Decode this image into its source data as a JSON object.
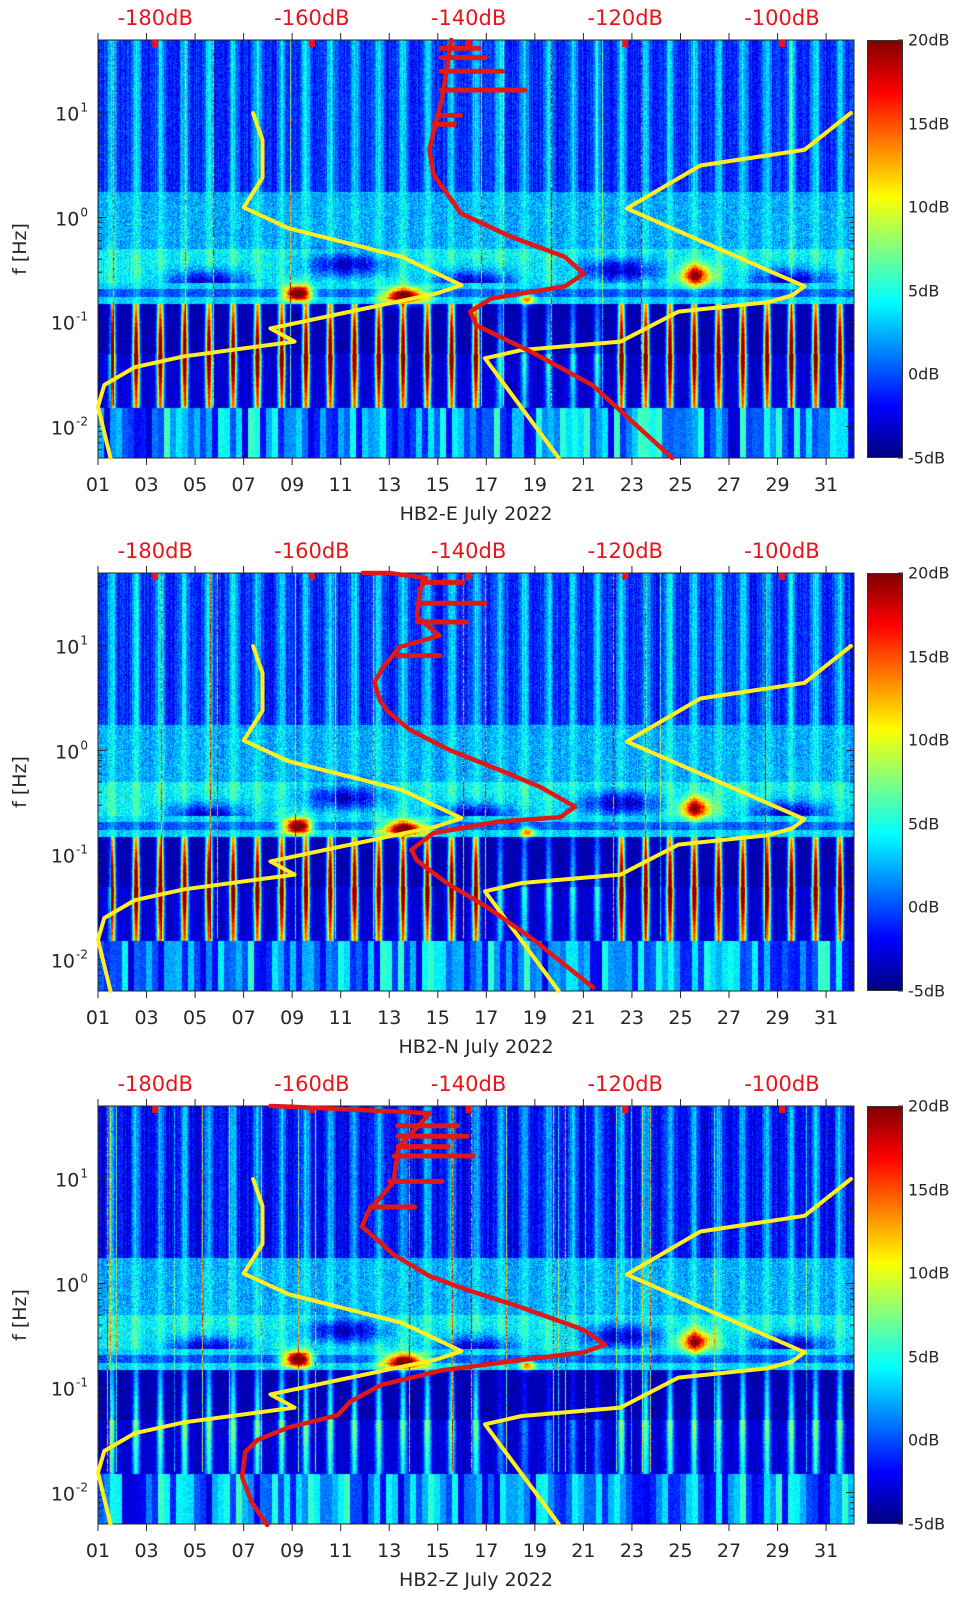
{
  "shared_axes": {
    "ylabel": "f [Hz]",
    "xlim_days": [
      1,
      32.15
    ],
    "ylim_hz": [
      0.005,
      50
    ],
    "yscale": "log",
    "x_tick_days": [
      1,
      3,
      5,
      7,
      9,
      11,
      13,
      15,
      17,
      19,
      21,
      23,
      25,
      27,
      29,
      31
    ],
    "x_tick_labels": [
      "01",
      "03",
      "05",
      "07",
      "09",
      "11",
      "13",
      "15",
      "17",
      "19",
      "21",
      "23",
      "25",
      "27",
      "29",
      "31"
    ],
    "y_ticks": [
      {
        "value": 10,
        "base": "10",
        "exp": "1"
      },
      {
        "value": 1,
        "base": "10",
        "exp": "0"
      },
      {
        "value": 0.1,
        "base": "10",
        "exp": "-1"
      },
      {
        "value": 0.01,
        "base": "10",
        "exp": "-2"
      }
    ],
    "top_axis": {
      "range_db": [
        -187.3,
        -90.8
      ],
      "values": [
        -180,
        -160,
        -140,
        -120,
        -100
      ],
      "labels": [
        "-180dB",
        "-160dB",
        "-140dB",
        "-120dB",
        "-100dB"
      ],
      "color": "#e8141a"
    },
    "colorbar": {
      "range_db": [
        -5,
        20
      ],
      "values": [
        20,
        15,
        10,
        5,
        0,
        -5
      ],
      "labels": [
        "20dB",
        "15dB",
        "10dB",
        "5dB",
        "0dB",
        "-5dB"
      ],
      "colormap": "jet"
    },
    "noise_models": {
      "low": {
        "color": "#ffee22",
        "points_db_hz": [
          [
            -167.5,
            10
          ],
          [
            -166.3,
            5.5
          ],
          [
            -166.3,
            2.4
          ],
          [
            -168.7,
            1.25
          ],
          [
            -163,
            0.79
          ],
          [
            -148.5,
            0.42
          ],
          [
            -140.9,
            0.225
          ],
          [
            -144.2,
            0.187
          ],
          [
            -165.3,
            0.087
          ],
          [
            -162.2,
            0.065
          ],
          [
            -176.3,
            0.047
          ],
          [
            -182.6,
            0.037
          ],
          [
            -186.5,
            0.025
          ],
          [
            -187.3,
            0.0155
          ],
          [
            -185.7,
            0.005
          ]
        ]
      },
      "high": {
        "color": "#ffee22",
        "points_db_hz": [
          [
            -91.2,
            10
          ],
          [
            -97.1,
            4.45
          ],
          [
            -110.4,
            3.15
          ],
          [
            -119.8,
            1.22
          ],
          [
            -97.1,
            0.22
          ],
          [
            -98.7,
            0.18
          ],
          [
            -101.8,
            0.155
          ],
          [
            -113.2,
            0.126
          ],
          [
            -120.6,
            0.065
          ],
          [
            -133.2,
            0.054
          ],
          [
            -137.9,
            0.045
          ],
          [
            -128.5,
            0.005
          ]
        ]
      }
    }
  },
  "chart_data": [
    {
      "type": "heatmap",
      "xlabel": "HB2-E July 2022",
      "psd_color": "#e01818",
      "psd_db_hz": [
        [
          -142.2,
          50
        ],
        [
          -143.4,
          13.5
        ],
        [
          -145,
          4.5
        ],
        [
          -144.5,
          2.6
        ],
        [
          -141,
          1.1
        ],
        [
          -134.7,
          0.66
        ],
        [
          -127.7,
          0.42
        ],
        [
          -125.3,
          0.29
        ],
        [
          -127.7,
          0.22
        ],
        [
          -137.1,
          0.168
        ],
        [
          -139.8,
          0.126
        ],
        [
          -139,
          0.093
        ],
        [
          -131.6,
          0.05
        ],
        [
          -124.2,
          0.025
        ],
        [
          -114,
          0.005
        ]
      ],
      "psd_spikes_db_db_hz": [
        [
          -143.5,
          -138.7,
          41.7
        ],
        [
          -143.5,
          -137.9,
          33.9
        ],
        [
          -143.5,
          -135.7,
          25.1
        ],
        [
          -143.5,
          -132.8,
          16.6
        ],
        [
          -144,
          -141,
          9.5
        ],
        [
          -144.5,
          -141.8,
          7.8
        ]
      ]
    },
    {
      "type": "heatmap",
      "xlabel": "HB2-N July 2022",
      "psd_color": "#e01818",
      "psd_db_hz": [
        [
          -153.5,
          50
        ],
        [
          -150.1,
          50
        ],
        [
          -145.4,
          44.7
        ],
        [
          -146.2,
          34.7
        ],
        [
          -146.6,
          19.1
        ],
        [
          -143.7,
          12.6
        ],
        [
          -148.8,
          9.8
        ],
        [
          -150.9,
          6.3
        ],
        [
          -152,
          4.5
        ],
        [
          -151.3,
          3.0
        ],
        [
          -150.1,
          2.3
        ],
        [
          -147.5,
          1.58
        ],
        [
          -142.4,
          1.01
        ],
        [
          -136,
          0.65
        ],
        [
          -130.9,
          0.45
        ],
        [
          -126.4,
          0.29
        ],
        [
          -128.3,
          0.23
        ],
        [
          -136,
          0.21
        ],
        [
          -144.5,
          0.162
        ],
        [
          -147.3,
          0.112
        ],
        [
          -146.6,
          0.089
        ],
        [
          -142.8,
          0.054
        ],
        [
          -137.7,
          0.032
        ],
        [
          -131.7,
          0.0155
        ],
        [
          -124.1,
          0.0054
        ]
      ],
      "psd_spikes_db_db_hz": [
        [
          -146,
          -140.7,
          40.7
        ],
        [
          -146.5,
          -137.9,
          25.7
        ],
        [
          -146.5,
          -140.3,
          17
        ],
        [
          -149,
          -143.7,
          8.1
        ]
      ]
    },
    {
      "type": "heatmap",
      "xlabel": "HB2-Z July 2022",
      "psd_color": "#e01818",
      "psd_db_hz": [
        [
          -165.3,
          50
        ],
        [
          -162.2,
          49
        ],
        [
          -144.9,
          42.7
        ],
        [
          -148.9,
          20.4
        ],
        [
          -149.6,
          9.3
        ],
        [
          -152.8,
          4.9
        ],
        [
          -153.6,
          3.5
        ],
        [
          -151.6,
          2.6
        ],
        [
          -149.6,
          1.9
        ],
        [
          -144.9,
          1.17
        ],
        [
          -140.2,
          0.87
        ],
        [
          -133.2,
          0.59
        ],
        [
          -125.3,
          0.36
        ],
        [
          -122.6,
          0.26
        ],
        [
          -125.3,
          0.22
        ],
        [
          -133.2,
          0.186
        ],
        [
          -143.4,
          0.148
        ],
        [
          -151.2,
          0.107
        ],
        [
          -155.1,
          0.074
        ],
        [
          -156.7,
          0.055
        ],
        [
          -163,
          0.042
        ],
        [
          -166.9,
          0.032
        ],
        [
          -168.5,
          0.0245
        ],
        [
          -168.9,
          0.0141
        ],
        [
          -167.7,
          0.0081
        ],
        [
          -165.7,
          0.0049
        ]
      ],
      "psd_spikes_db_db_hz": [
        [
          -149,
          -141.4,
          32.4
        ],
        [
          -149,
          -140.2,
          25.7
        ],
        [
          -149,
          -142.6,
          20.4
        ],
        [
          -149.5,
          -139.4,
          16.6
        ],
        [
          -150,
          -143.4,
          9.5
        ],
        [
          -152.5,
          -146.9,
          5.4
        ]
      ]
    }
  ]
}
